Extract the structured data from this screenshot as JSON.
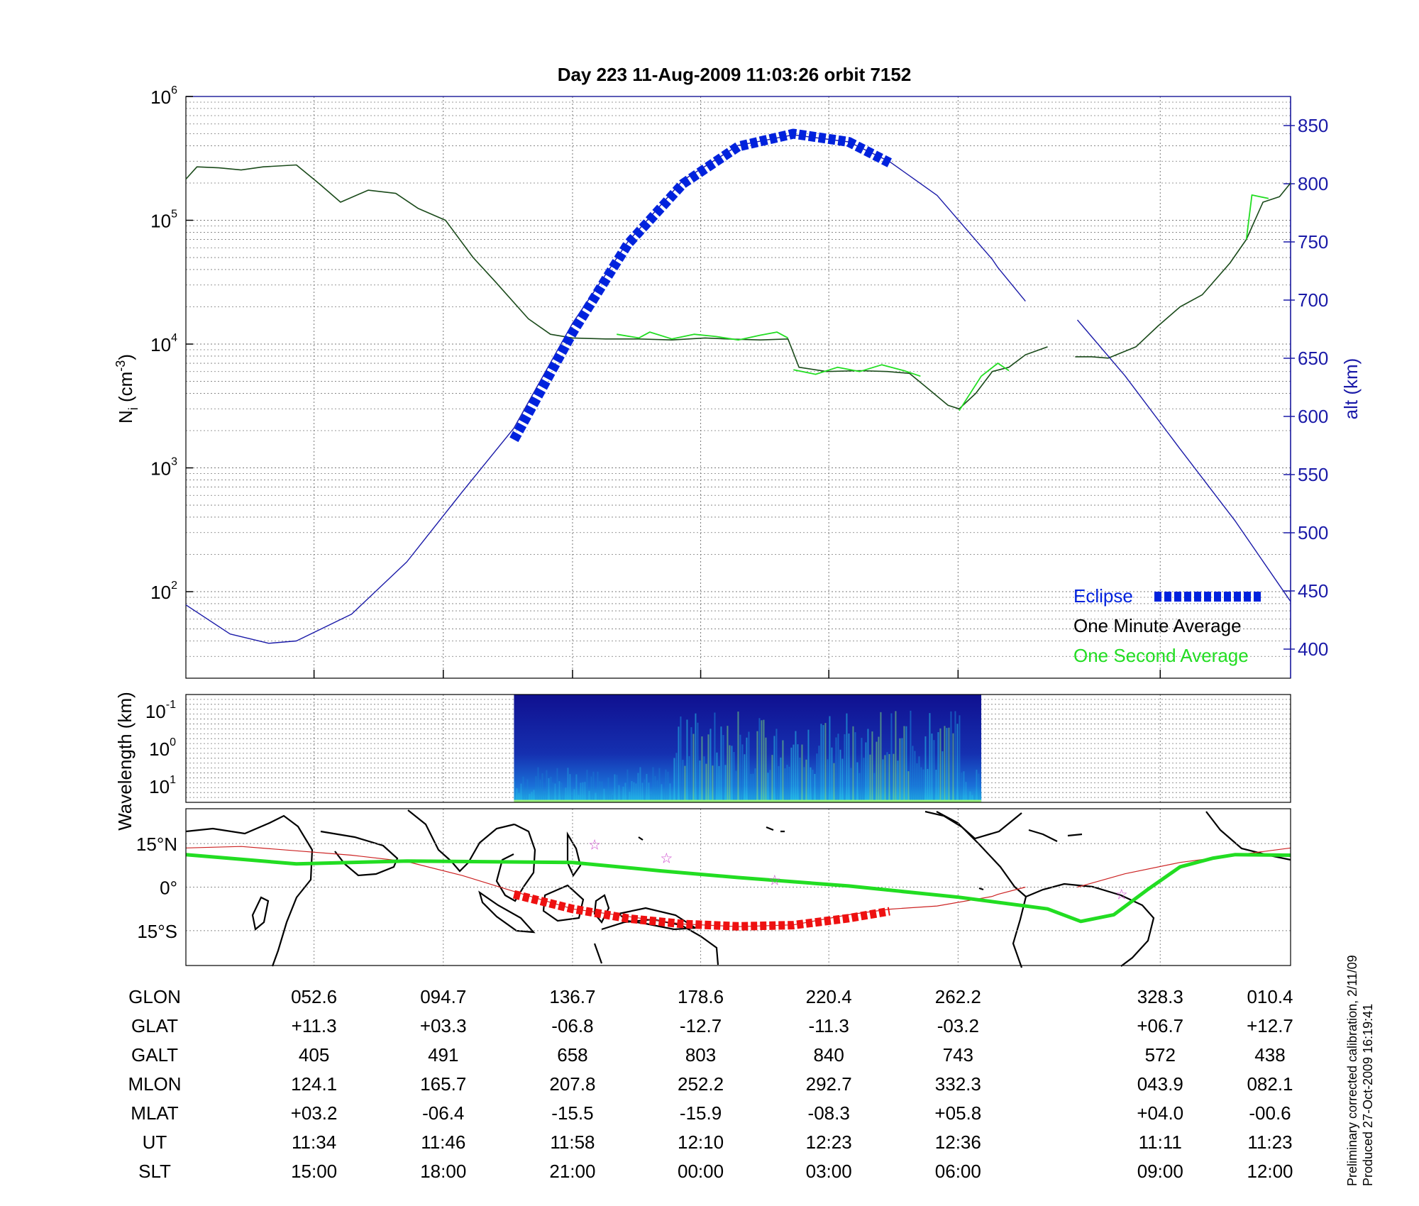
{
  "title": "Day 223  11-Aug-2009 11:03:26   orbit 7152",
  "colors": {
    "eclipse": "#0022dd",
    "altitude": "#1a1aa8",
    "one_minute": "#000000",
    "one_second": "#22dd22",
    "track_red": "#ee1111",
    "path_thin": "#cc2222",
    "star": "#cc44cc",
    "axis_right": "#1a1aa8"
  },
  "chart_data": [
    {
      "type": "line",
      "title": "Day 223  11-Aug-2009 11:03:26   orbit 7152",
      "ylabel_main": "N",
      "ylabel_sub": "i",
      "ylabel_rest": " (cm",
      "ylabel_sup": "-3",
      "ylabel_end": ")",
      "ylabel_right": "alt (km)",
      "yscale_left": "log",
      "ylim_left": [
        20,
        1000000
      ],
      "ylim_right": [
        375,
        875
      ],
      "y_left_ticks": [
        {
          "base": "10",
          "exp": "2",
          "value": 100
        },
        {
          "base": "10",
          "exp": "3",
          "value": 1000
        },
        {
          "base": "10",
          "exp": "4",
          "value": 10000
        },
        {
          "base": "10",
          "exp": "5",
          "value": 100000
        },
        {
          "base": "10",
          "exp": "6",
          "value": 1000000
        }
      ],
      "y_right_ticks": [
        "400",
        "450",
        "500",
        "550",
        "600",
        "650",
        "700",
        "750",
        "800",
        "850"
      ],
      "grid": true,
      "legend": {
        "placement": "bottom-right",
        "entries": [
          {
            "label": "Eclipse",
            "color": "#0022dd"
          },
          {
            "label": "One Minute Average",
            "color": "#000000"
          },
          {
            "label": "One Second Average",
            "color": "#22dd22"
          }
        ]
      },
      "series": [
        {
          "name": "One Minute Average",
          "axis": "left",
          "segments": [
            [
              [
                0.0,
                215000
              ],
              [
                0.01,
                270000
              ],
              [
                0.03,
                265000
              ],
              [
                0.05,
                255000
              ],
              [
                0.07,
                270000
              ],
              [
                0.1,
                280000
              ],
              [
                0.12,
                200000
              ],
              [
                0.14,
                140000
              ],
              [
                0.165,
                175000
              ],
              [
                0.19,
                165000
              ],
              [
                0.21,
                125000
              ],
              [
                0.235,
                100000
              ],
              [
                0.26,
                50000
              ],
              [
                0.28,
                32000
              ],
              [
                0.31,
                16000
              ],
              [
                0.33,
                12000
              ],
              [
                0.35,
                11200
              ],
              [
                0.38,
                11000
              ],
              [
                0.41,
                11000
              ],
              [
                0.44,
                10800
              ],
              [
                0.47,
                11200
              ],
              [
                0.49,
                11000
              ],
              [
                0.52,
                10800
              ],
              [
                0.545,
                11000
              ],
              [
                0.555,
                6500
              ],
              [
                0.58,
                6000
              ],
              [
                0.61,
                6100
              ],
              [
                0.635,
                6000
              ],
              [
                0.655,
                5800
              ],
              [
                0.67,
                4500
              ],
              [
                0.69,
                3200
              ],
              [
                0.7,
                3000
              ],
              [
                0.715,
                4000
              ],
              [
                0.73,
                6000
              ],
              [
                0.745,
                6500
              ],
              [
                0.76,
                8200
              ],
              [
                0.78,
                9500
              ]
            ],
            [
              [
                0.805,
                7900
              ],
              [
                0.82,
                7900
              ],
              [
                0.835,
                7700
              ],
              [
                0.86,
                9500
              ],
              [
                0.88,
                14000
              ],
              [
                0.9,
                20000
              ],
              [
                0.92,
                25000
              ],
              [
                0.945,
                45000
              ],
              [
                0.96,
                70000
              ],
              [
                0.975,
                140000
              ],
              [
                0.99,
                155000
              ],
              [
                1.0,
                200000
              ]
            ]
          ]
        },
        {
          "name": "One Second Average",
          "axis": "left",
          "segments": [
            [
              [
                0.39,
                12000
              ],
              [
                0.41,
                11200
              ],
              [
                0.42,
                12500
              ],
              [
                0.44,
                11000
              ],
              [
                0.46,
                12000
              ],
              [
                0.48,
                11500
              ],
              [
                0.5,
                10800
              ],
              [
                0.52,
                11800
              ],
              [
                0.535,
                12500
              ],
              [
                0.545,
                11200
              ]
            ],
            [
              [
                0.55,
                6200
              ],
              [
                0.57,
                5700
              ],
              [
                0.59,
                6500
              ],
              [
                0.61,
                6000
              ],
              [
                0.63,
                6800
              ],
              [
                0.65,
                6100
              ],
              [
                0.665,
                5500
              ]
            ],
            [
              [
                0.7,
                2900
              ],
              [
                0.72,
                5500
              ],
              [
                0.735,
                7000
              ],
              [
                0.745,
                6100
              ]
            ],
            [
              [
                0.96,
                70000
              ],
              [
                0.965,
                160000
              ],
              [
                0.98,
                150000
              ]
            ]
          ]
        },
        {
          "name": "alt (km)",
          "axis": "right",
          "segments": [
            [
              [
                0.0,
                438
              ],
              [
                0.04,
                413
              ],
              [
                0.075,
                405
              ],
              [
                0.1,
                407
              ],
              [
                0.15,
                430
              ],
              [
                0.2,
                475
              ],
              [
                0.25,
                535
              ],
              [
                0.297,
                590
              ],
              [
                0.35,
                680
              ],
              [
                0.4,
                750
              ],
              [
                0.45,
                803
              ],
              [
                0.5,
                833
              ],
              [
                0.55,
                842
              ],
              [
                0.6,
                836
              ],
              [
                0.637,
                819
              ],
              [
                0.68,
                790
              ],
              [
                0.73,
                735
              ],
              [
                0.735,
                728
              ],
              [
                0.76,
                699
              ]
            ],
            [
              [
                0.807,
                683
              ],
              [
                0.85,
                635
              ],
              [
                0.9,
                572
              ],
              [
                0.95,
                510
              ],
              [
                1.0,
                441
              ]
            ]
          ]
        },
        {
          "name": "Eclipse",
          "axis": "right",
          "segments": [
            [
              [
                0.297,
                580
              ],
              [
                0.35,
                672
              ],
              [
                0.4,
                748
              ],
              [
                0.45,
                800
              ],
              [
                0.5,
                832
              ],
              [
                0.55,
                843
              ],
              [
                0.6,
                836
              ],
              [
                0.637,
                818
              ]
            ]
          ]
        }
      ]
    },
    {
      "type": "heatmap",
      "ylabel": "Wavelength (km)",
      "yscale": "log",
      "y_ticks": [
        {
          "base": "10",
          "exp": "-1"
        },
        {
          "base": "10",
          "exp": "0"
        },
        {
          "base": "10",
          "exp": "1"
        }
      ],
      "x_extent": [
        0.297,
        0.72
      ],
      "intensity_peak_x": [
        0.44,
        0.7
      ]
    },
    {
      "type": "line",
      "subtype": "ground-track-map",
      "y_ticks": [
        "15°N",
        "0°",
        "15°S"
      ],
      "ylim": [
        -27,
        27
      ],
      "series": [
        {
          "name": "green-trace",
          "points": [
            [
              0.0,
              11.2
            ],
            [
              0.1,
              8.0
            ],
            [
              0.2,
              9.0
            ],
            [
              0.35,
              8.5
            ],
            [
              0.43,
              5.6
            ],
            [
              0.5,
              3.3
            ],
            [
              0.6,
              0.4
            ],
            [
              0.7,
              -3.5
            ],
            [
              0.78,
              -7.5
            ],
            [
              0.81,
              -11.8
            ],
            [
              0.84,
              -9.5
            ],
            [
              0.87,
              -1.0
            ],
            [
              0.9,
              7.0
            ],
            [
              0.93,
              10.0
            ],
            [
              0.95,
              11.2
            ],
            [
              1.0,
              11.0
            ]
          ]
        },
        {
          "name": "thin-path",
          "segments": [
            [
              [
                0.0,
                13.5
              ],
              [
                0.05,
                14.0
              ],
              [
                0.1,
                12.5
              ],
              [
                0.15,
                11.0
              ],
              [
                0.2,
                8.8
              ],
              [
                0.25,
                4.0
              ],
              [
                0.297,
                -1.5
              ],
              [
                0.35,
                -7.5
              ],
              [
                0.45,
                -12.7
              ],
              [
                0.5,
                -13.6
              ],
              [
                0.55,
                -13.0
              ],
              [
                0.6,
                -9.5
              ],
              [
                0.637,
                -7.6
              ],
              [
                0.68,
                -6.5
              ],
              [
                0.73,
                -3.2
              ],
              [
                0.735,
                -2.5
              ],
              [
                0.76,
                0.0
              ]
            ],
            [
              [
                0.807,
                0.0
              ],
              [
                0.85,
                4.6
              ],
              [
                0.9,
                8.5
              ],
              [
                0.95,
                11.0
              ],
              [
                1.0,
                13.5
              ]
            ]
          ]
        },
        {
          "name": "eclipse-track",
          "points": [
            [
              0.297,
              -2.5
            ],
            [
              0.35,
              -7.5
            ],
            [
              0.4,
              -10.8
            ],
            [
              0.45,
              -12.7
            ],
            [
              0.5,
              -13.5
            ],
            [
              0.55,
              -13.1
            ],
            [
              0.6,
              -10.7
            ],
            [
              0.637,
              -8.3
            ]
          ]
        }
      ],
      "stars": [
        [
          0.37,
          14.7
        ],
        [
          0.435,
          10.0
        ],
        [
          0.533,
          2.5
        ],
        [
          0.847,
          -2.5
        ]
      ]
    }
  ],
  "table": {
    "labels": [
      "GLON",
      "GLAT",
      "GALT",
      "MLON",
      "MLAT",
      "UT",
      "SLT"
    ],
    "columns": [
      {
        "x": 0.116,
        "values": [
          "052.6",
          "+11.3",
          "405",
          "124.1",
          "+03.2",
          "11:34",
          "15:00"
        ]
      },
      {
        "x": 0.233,
        "values": [
          "094.7",
          "+03.3",
          "491",
          "165.7",
          "-06.4",
          "11:46",
          "18:00"
        ]
      },
      {
        "x": 0.35,
        "values": [
          "136.7",
          "-06.8",
          "658",
          "207.8",
          "-15.5",
          "11:58",
          "21:00"
        ]
      },
      {
        "x": 0.466,
        "values": [
          "178.6",
          "-12.7",
          "803",
          "252.2",
          "-15.9",
          "12:10",
          "00:00"
        ]
      },
      {
        "x": 0.582,
        "values": [
          "220.4",
          "-11.3",
          "840",
          "292.7",
          "-08.3",
          "12:23",
          "03:00"
        ]
      },
      {
        "x": 0.699,
        "values": [
          "262.2",
          "-03.2",
          "743",
          "332.3",
          "+05.8",
          "12:36",
          "06:00"
        ]
      },
      {
        "x": 0.882,
        "values": [
          "328.3",
          "+06.7",
          "572",
          "043.9",
          "+04.0",
          "11:11",
          "09:00"
        ]
      },
      {
        "x": 1.0,
        "values": [
          "010.4",
          "+12.7",
          "438",
          "082.1",
          "-00.6",
          "11:23",
          "12:00"
        ]
      }
    ]
  },
  "footer": {
    "line1": "Preliminary corrected calibration, 2/11/09",
    "line2": "Produced 27-Oct-2009 16:19:41"
  }
}
